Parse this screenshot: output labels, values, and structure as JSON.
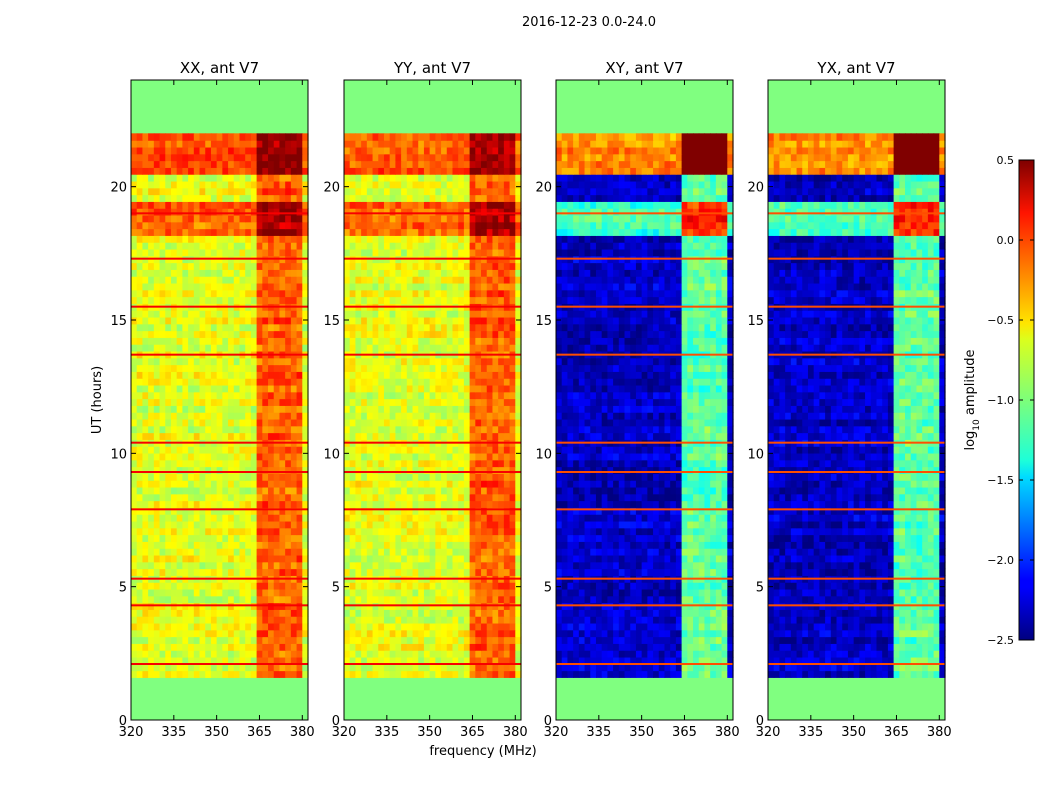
{
  "chart_data": {
    "type": "heatmap",
    "suptitle": "2016-12-23 0.0-24.0",
    "xlabel": "frequency (MHz)",
    "ylabel": "UT (hours)",
    "xlim": [
      320,
      382
    ],
    "ylim": [
      0,
      24
    ],
    "xticks": [
      320,
      335,
      350,
      365,
      380
    ],
    "yticks": [
      0,
      5,
      10,
      15,
      20
    ],
    "data_range_hours": [
      1.6,
      22.0
    ],
    "panels": [
      {
        "title": "XX, ant V7",
        "polarization": "XX",
        "base_level": -0.7,
        "high_band_level": -0.15
      },
      {
        "title": "YY, ant V7",
        "polarization": "YY",
        "base_level": -0.7,
        "high_band_level": -0.15
      },
      {
        "title": "XY, ant V7",
        "polarization": "XY",
        "base_level": -2.3,
        "high_band_level": -1.1
      },
      {
        "title": "YX, ant V7",
        "polarization": "YX",
        "base_level": -2.3,
        "high_band_level": -1.1
      }
    ],
    "high_band_mhz": [
      363,
      379
    ],
    "colorbar": {
      "label": "log",
      "label_sub": "10",
      "label_suffix": " amplitude",
      "range": [
        -2.5,
        0.5
      ],
      "ticks": [
        "0.5",
        "0.0",
        "−0.5",
        "−1.0",
        "−1.5",
        "−2.0",
        "−2.5"
      ],
      "tick_values": [
        0.5,
        0.0,
        -0.5,
        -1.0,
        -1.5,
        -2.0,
        -2.5
      ],
      "colormap": "jet",
      "masked_value": -1.0
    }
  }
}
